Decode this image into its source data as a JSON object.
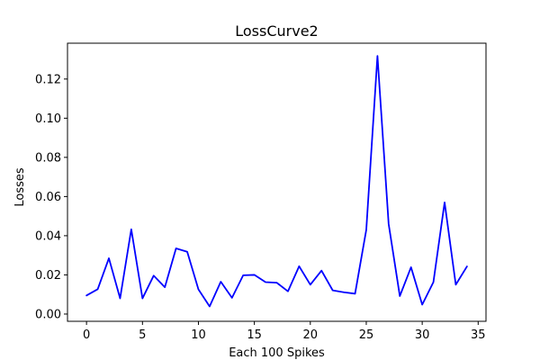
{
  "chart_data": {
    "type": "line",
    "title": "LossCurve2",
    "xlabel": "Each 100 Spikes",
    "ylabel": "Losses",
    "xlim": [
      -1.7,
      35.7
    ],
    "ylim": [
      -0.0037,
      0.1383
    ],
    "x_ticks": [
      0,
      5,
      10,
      15,
      20,
      25,
      30,
      35
    ],
    "y_ticks": [
      0.0,
      0.02,
      0.04,
      0.06,
      0.08,
      0.1,
      0.12
    ],
    "y_tick_labels": [
      "0.00",
      "0.02",
      "0.04",
      "0.06",
      "0.08",
      "0.10",
      "0.12"
    ],
    "grid": false,
    "series": [
      {
        "color": "#0000ff",
        "x": [
          0,
          1,
          2,
          3,
          4,
          5,
          6,
          7,
          8,
          9,
          10,
          11,
          12,
          13,
          14,
          15,
          16,
          17,
          18,
          19,
          20,
          21,
          22,
          23,
          24,
          25,
          26,
          27,
          28,
          29,
          30,
          31,
          32,
          33,
          34
        ],
        "values": [
          0.0095,
          0.0127,
          0.0285,
          0.008,
          0.0433,
          0.008,
          0.0196,
          0.0137,
          0.0335,
          0.0318,
          0.0126,
          0.0039,
          0.0165,
          0.0083,
          0.0198,
          0.02,
          0.0163,
          0.016,
          0.0116,
          0.0244,
          0.015,
          0.0222,
          0.0121,
          0.0111,
          0.0104,
          0.043,
          0.1318,
          0.046,
          0.0092,
          0.0239,
          0.0048,
          0.0163,
          0.057,
          0.015,
          0.0243
        ]
      }
    ]
  }
}
